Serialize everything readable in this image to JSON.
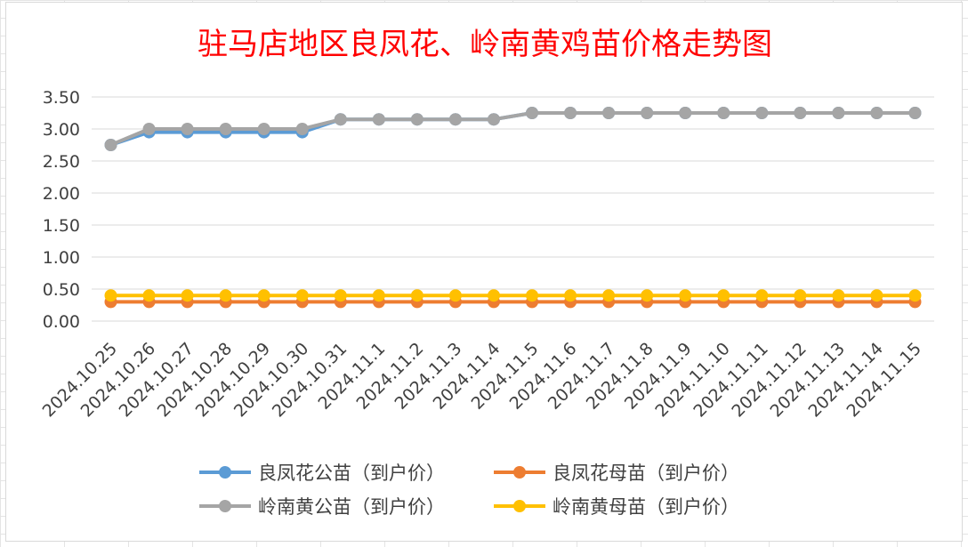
{
  "chart_data": {
    "type": "line",
    "title": "驻马店地区良凤花、岭南黄鸡苗价格走势图",
    "title_color": "#ff0000",
    "xlabel": "",
    "ylabel": "",
    "ylim": [
      0,
      3.5
    ],
    "yticks": [
      "0.00",
      "0.50",
      "1.00",
      "1.50",
      "2.00",
      "2.50",
      "3.00",
      "3.50"
    ],
    "grid": true,
    "legend_position": "bottom",
    "categories": [
      "2024.10.25",
      "2024.10.26",
      "2024.10.27",
      "2024.10.28",
      "2024.10.29",
      "2024.10.30",
      "2024.10.31",
      "2024.11.1",
      "2024.11.2",
      "2024.11.3",
      "2024.11.4",
      "2024.11.5",
      "2024.11.6",
      "2024.11.7",
      "2024.11.8",
      "2024.11.9",
      "2024.11.10",
      "2024.11.11",
      "2024.11.12",
      "2024.11.13",
      "2024.11.14",
      "2024.11.15"
    ],
    "series": [
      {
        "name": "良凤花公苗（到户价）",
        "color": "#5b9bd5",
        "values": [
          2.75,
          2.95,
          2.95,
          2.95,
          2.95,
          2.95,
          3.15,
          3.15,
          3.15,
          3.15,
          3.15,
          3.25,
          3.25,
          3.25,
          3.25,
          3.25,
          3.25,
          3.25,
          3.25,
          3.25,
          3.25,
          3.25
        ]
      },
      {
        "name": "良凤花母苗（到户价）",
        "color": "#ed7d31",
        "values": [
          0.3,
          0.3,
          0.3,
          0.3,
          0.3,
          0.3,
          0.3,
          0.3,
          0.3,
          0.3,
          0.3,
          0.3,
          0.3,
          0.3,
          0.3,
          0.3,
          0.3,
          0.3,
          0.3,
          0.3,
          0.3,
          0.3
        ]
      },
      {
        "name": "岭南黄公苗（到户价）",
        "color": "#a5a5a5",
        "values": [
          2.75,
          3.0,
          3.0,
          3.0,
          3.0,
          3.0,
          3.15,
          3.15,
          3.15,
          3.15,
          3.15,
          3.25,
          3.25,
          3.25,
          3.25,
          3.25,
          3.25,
          3.25,
          3.25,
          3.25,
          3.25,
          3.25
        ]
      },
      {
        "name": "岭南黄母苗（到户价）",
        "color": "#ffc000",
        "values": [
          0.4,
          0.4,
          0.4,
          0.4,
          0.4,
          0.4,
          0.4,
          0.4,
          0.4,
          0.4,
          0.4,
          0.4,
          0.4,
          0.4,
          0.4,
          0.4,
          0.4,
          0.4,
          0.4,
          0.4,
          0.4,
          0.4
        ]
      }
    ],
    "draw_order": [
      0,
      1,
      3,
      2
    ]
  }
}
